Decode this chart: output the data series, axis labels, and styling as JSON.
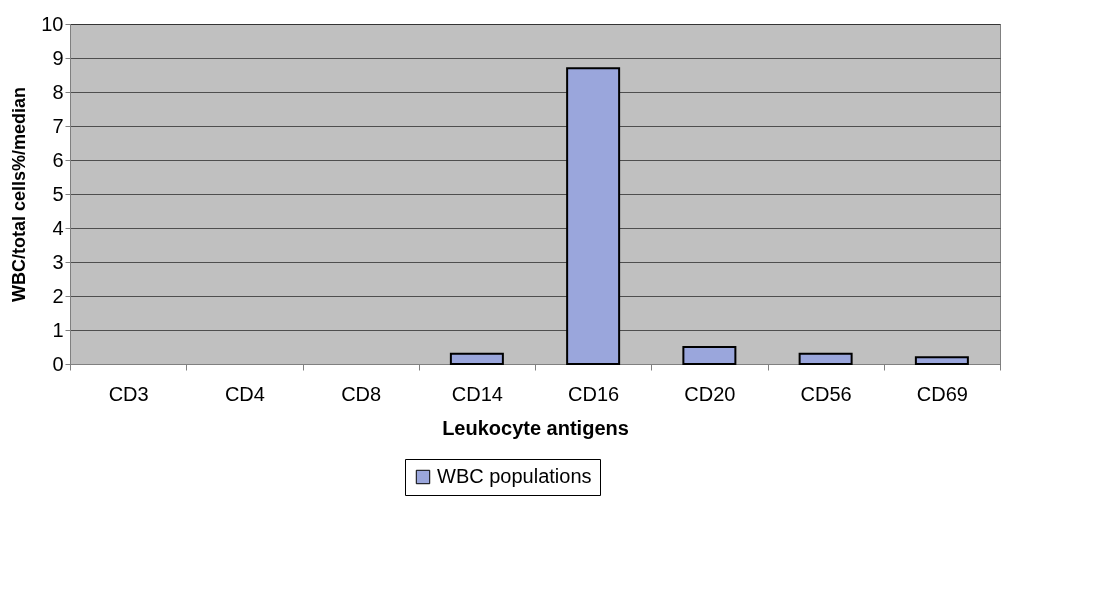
{
  "chart_data": {
    "type": "bar",
    "xlabel": "Leukocyte antigens",
    "ylabel": "WBC/total cells%/median",
    "categories": [
      "CD3",
      "CD4",
      "CD8",
      "CD14",
      "CD16",
      "CD20",
      "CD56",
      "CD69"
    ],
    "series": [
      {
        "name": "WBC populations",
        "color": "#9aa6dc",
        "values": [
          0,
          0,
          0,
          0.3,
          8.7,
          0.5,
          0.3,
          0.2
        ]
      }
    ],
    "ylim": [
      0,
      10
    ],
    "yticks": [
      0,
      1,
      2,
      3,
      4,
      5,
      6,
      7,
      8,
      9,
      10
    ],
    "grid": "y",
    "legend": "bottom"
  }
}
